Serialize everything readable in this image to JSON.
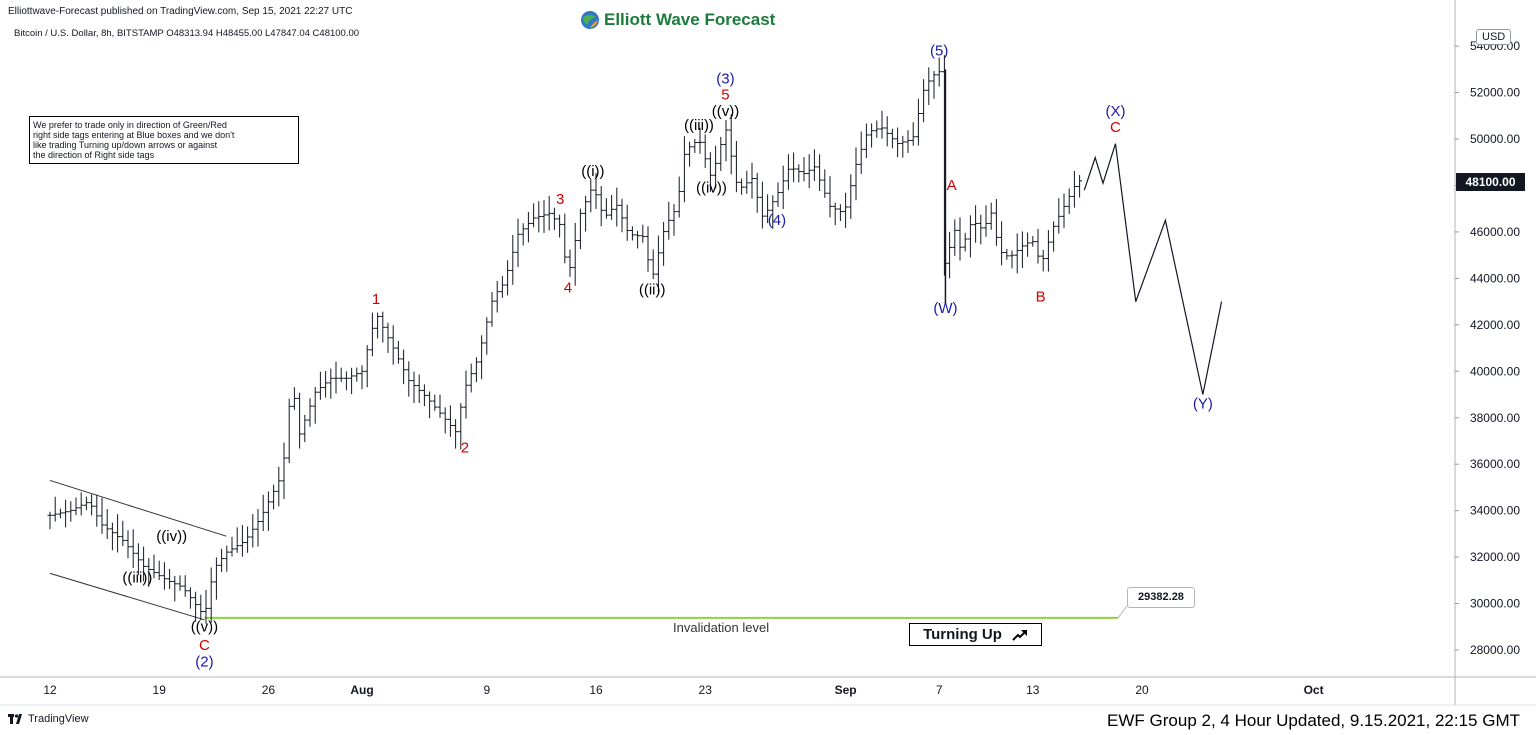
{
  "header": {
    "publisher": "Elliottwave-Forecast published on TradingView.com, Sep 15, 2021 22:27 UTC",
    "brand": "Elliott Wave Forecast",
    "symbol_line": "Bitcoin / U.S. Dollar, 8h, BITSTAMP  O48313.94  H48455.00  L47847.04  C48100.00"
  },
  "note_lines": [
    "We prefer to trade only in direction of Green/Red",
    "right side tags entering at Blue boxes and we don't",
    "like trading Turning up/down arrows or against",
    "the direction of Right side tags"
  ],
  "turning_box": {
    "label": "Turning Up",
    "icon": "arrow-up-right-icon"
  },
  "invalidation": {
    "label": "Invalidation level",
    "value": "29382.28",
    "price": 29382.28
  },
  "last_price": "48100.00",
  "currency": "USD",
  "footer": "EWF Group 2, 4 Hour Updated, 9.15.2021, 22:15 GMT",
  "tradingview_label": "TradingView",
  "colors": {
    "black": "#000000",
    "red": "#d10000",
    "blue": "#1a1aa8",
    "green": "#8bd440",
    "brand_green": "#1e7a3d"
  },
  "chart_data": {
    "type": "candlestick",
    "title": "Bitcoin / U.S. Dollar, 8h, BITSTAMP",
    "y_axis": {
      "min": 26500,
      "max": 55000,
      "ticks": [
        28000,
        30000,
        32000,
        34000,
        36000,
        38000,
        40000,
        42000,
        44000,
        46000,
        48000,
        50000,
        52000,
        54000
      ],
      "tick_labels": [
        "28000.00",
        "30000.00",
        "32000.00",
        "34000.00",
        "36000.00",
        "38000.00",
        "40000.00",
        "42000.00",
        "44000.00",
        "46000.00",
        "48000.00",
        "50000.00",
        "52000.00",
        "54000.00"
      ]
    },
    "x_axis": {
      "ticks": [
        {
          "label": "12",
          "day": 0
        },
        {
          "label": "19",
          "day": 7
        },
        {
          "label": "26",
          "day": 14
        },
        {
          "label": "Aug",
          "day": 20
        },
        {
          "label": "9",
          "day": 28
        },
        {
          "label": "16",
          "day": 35
        },
        {
          "label": "23",
          "day": 42
        },
        {
          "label": "Sep",
          "day": 51
        },
        {
          "label": "7",
          "day": 57
        },
        {
          "label": "13",
          "day": 63
        },
        {
          "label": "20",
          "day": 70
        },
        {
          "label": "Oct",
          "day": 81
        }
      ],
      "day_zero": "Jul 12, 2021"
    },
    "price_path": [
      [
        0,
        33800
      ],
      [
        1.3,
        34000
      ],
      [
        2.5,
        34400
      ],
      [
        3.3,
        33400
      ],
      [
        4.7,
        32700
      ],
      [
        6,
        31600
      ],
      [
        7,
        31200
      ],
      [
        7.5,
        31000
      ],
      [
        8.5,
        30700
      ],
      [
        9.9,
        29450
      ],
      [
        10.5,
        31500
      ],
      [
        11.3,
        32200
      ],
      [
        12.5,
        32700
      ],
      [
        13.5,
        33700
      ],
      [
        14.9,
        35600
      ],
      [
        15.5,
        39600
      ],
      [
        16,
        37300
      ],
      [
        17,
        39100
      ],
      [
        18,
        39700
      ],
      [
        19,
        39700
      ],
      [
        20,
        40000
      ],
      [
        20.9,
        42500
      ],
      [
        21.4,
        41800
      ],
      [
        22,
        41000
      ],
      [
        23,
        39600
      ],
      [
        24.1,
        38900
      ],
      [
        25,
        38200
      ],
      [
        26,
        37400
      ],
      [
        26.6,
        39300
      ],
      [
        27.4,
        40500
      ],
      [
        28.4,
        43200
      ],
      [
        29.1,
        43800
      ],
      [
        30,
        45900
      ],
      [
        31,
        46600
      ],
      [
        32,
        46800
      ],
      [
        32.7,
        46300
      ],
      [
        33.2,
        44000
      ],
      [
        34,
        46800
      ],
      [
        34.8,
        48000
      ],
      [
        35.5,
        46600
      ],
      [
        36.3,
        47200
      ],
      [
        37.1,
        45900
      ],
      [
        38,
        45800
      ],
      [
        38.6,
        44000
      ],
      [
        39.4,
        46200
      ],
      [
        40.2,
        47100
      ],
      [
        40.7,
        49500
      ],
      [
        41.6,
        50000
      ],
      [
        42.4,
        48300
      ],
      [
        43.3,
        50500
      ],
      [
        44.1,
        47800
      ],
      [
        45,
        48300
      ],
      [
        45.7,
        46600
      ],
      [
        46.6,
        47600
      ],
      [
        47.4,
        48800
      ],
      [
        48.3,
        48500
      ],
      [
        49,
        48800
      ],
      [
        50,
        47100
      ],
      [
        50.9,
        46800
      ],
      [
        51.7,
        49000
      ],
      [
        52.4,
        50300
      ],
      [
        53.3,
        50500
      ],
      [
        54.3,
        49800
      ],
      [
        55.3,
        50000
      ],
      [
        56,
        52100
      ],
      [
        56.5,
        52700
      ],
      [
        57,
        52900
      ],
      [
        57.4,
        43000
      ],
      [
        57.8,
        46500
      ],
      [
        58.4,
        45200
      ],
      [
        59.1,
        46500
      ],
      [
        59.8,
        46100
      ],
      [
        60.4,
        46900
      ],
      [
        60.8,
        45200
      ],
      [
        61.5,
        44900
      ],
      [
        62.5,
        45500
      ],
      [
        63.1,
        45600
      ],
      [
        63.5,
        44500
      ],
      [
        64.3,
        46200
      ],
      [
        65,
        47100
      ],
      [
        65.7,
        48000
      ],
      [
        66.3,
        48400
      ]
    ],
    "projection_path": [
      [
        66.3,
        47800
      ],
      [
        67,
        49200
      ],
      [
        67.5,
        48100
      ],
      [
        68.3,
        49800
      ],
      [
        69.6,
        43000
      ],
      [
        71.5,
        46500
      ],
      [
        73.9,
        39000
      ],
      [
        75.1,
        43000
      ]
    ],
    "wave_labels": [
      {
        "text": "((iii))",
        "day": 5.6,
        "price": 30900,
        "color": "black"
      },
      {
        "text": "((iv))",
        "day": 7.8,
        "price": 32700,
        "color": "black"
      },
      {
        "text": "((v))",
        "day": 9.9,
        "price": 28800,
        "color": "black"
      },
      {
        "text": "C",
        "day": 9.9,
        "price": 28000,
        "color": "red"
      },
      {
        "text": "(2)",
        "day": 9.9,
        "price": 27300,
        "color": "blue"
      },
      {
        "text": "1",
        "day": 20.9,
        "price": 42900,
        "color": "red"
      },
      {
        "text": "2",
        "day": 26.6,
        "price": 36500,
        "color": "red"
      },
      {
        "text": "3",
        "day": 32.7,
        "price": 47200,
        "color": "red"
      },
      {
        "text": "4",
        "day": 33.2,
        "price": 43400,
        "color": "red"
      },
      {
        "text": "((i))",
        "day": 34.8,
        "price": 48400,
        "color": "black"
      },
      {
        "text": "((ii))",
        "day": 38.6,
        "price": 43300,
        "color": "black"
      },
      {
        "text": "((iii))",
        "day": 41.6,
        "price": 50400,
        "color": "black"
      },
      {
        "text": "((iv))",
        "day": 42.4,
        "price": 47700,
        "color": "black"
      },
      {
        "text": "((v))",
        "day": 43.3,
        "price": 51000,
        "color": "black"
      },
      {
        "text": "5",
        "day": 43.3,
        "price": 51700,
        "color": "red"
      },
      {
        "text": "(3)",
        "day": 43.3,
        "price": 52400,
        "color": "blue"
      },
      {
        "text": "(4)",
        "day": 46.6,
        "price": 46300,
        "color": "blue"
      },
      {
        "text": "(5)",
        "day": 57,
        "price": 53600,
        "color": "blue"
      },
      {
        "text": "A",
        "day": 57.8,
        "price": 47800,
        "color": "red"
      },
      {
        "text": "(W)",
        "day": 57.4,
        "price": 42500,
        "color": "blue"
      },
      {
        "text": "B",
        "day": 63.5,
        "price": 43000,
        "color": "red"
      },
      {
        "text": "(X)",
        "day": 68.3,
        "price": 51000,
        "color": "blue"
      },
      {
        "text": "C",
        "day": 68.3,
        "price": 50300,
        "color": "red"
      },
      {
        "text": "(Y)",
        "day": 73.9,
        "price": 38400,
        "color": "blue"
      }
    ],
    "channel_lines": [
      {
        "from": [
          0,
          35300
        ],
        "to": [
          11.3,
          32900
        ]
      },
      {
        "from": [
          0,
          31300
        ],
        "to": [
          9.9,
          29300
        ]
      }
    ],
    "grid": false
  }
}
